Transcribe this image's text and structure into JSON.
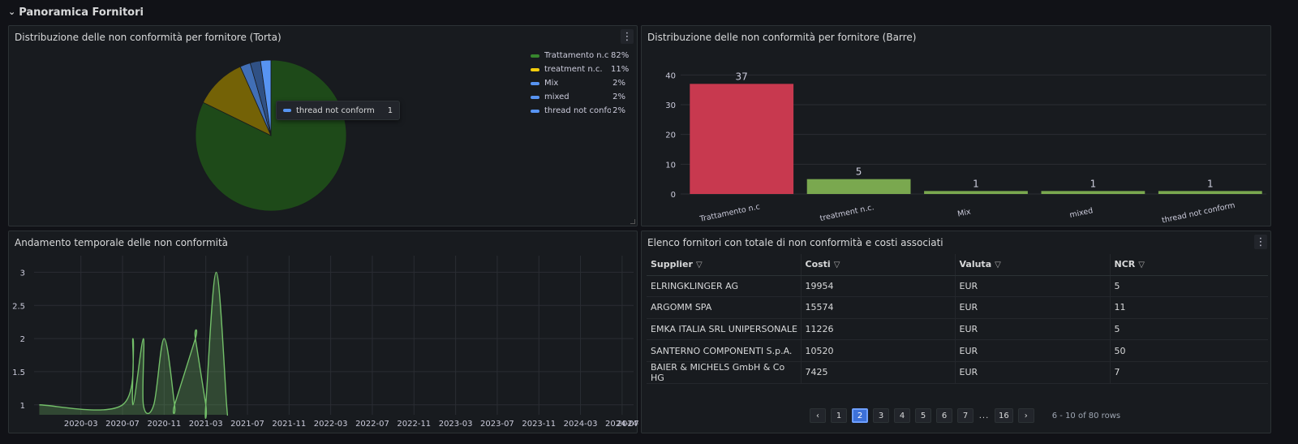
{
  "row": {
    "title": "Panoramica Fornitori"
  },
  "colors": {
    "green": "#37872d",
    "orange": "#f2cc0c",
    "blue": "#5794f2",
    "red": "#e02f44",
    "lightgreen": "#73bf69",
    "bg": "#181b1f"
  },
  "pie_panel": {
    "title": "Distribuzione delle non conformità per fornitore (Torta)",
    "tooltip": {
      "name": "thread not conform",
      "value": "1"
    },
    "legend": [
      {
        "name": "Trattamento n.c",
        "pct": "82%",
        "color": "#37872d"
      },
      {
        "name": "treatment n.c.",
        "pct": "11%",
        "color": "#f2cc0c"
      },
      {
        "name": "Mix",
        "pct": "2%",
        "color": "#5794f2"
      },
      {
        "name": "mixed",
        "pct": "2%",
        "color": "#5794f2"
      },
      {
        "name": "thread not conform",
        "pct": "2%",
        "color": "#5794f2"
      }
    ]
  },
  "bar_panel": {
    "title": "Distribuzione delle non conformità per fornitore (Barre)"
  },
  "time_panel": {
    "title": "Andamento temporale delle non conformità"
  },
  "table_panel": {
    "title": "Elenco fornitori con totale di non conformità e costi associati",
    "columns": [
      "Supplier",
      "Costi",
      "Valuta",
      "NCR"
    ],
    "rows": [
      [
        "ELRINGKLINGER AG",
        "19954",
        "EUR",
        "5"
      ],
      [
        "ARGOMM SPA",
        "15574",
        "EUR",
        "11"
      ],
      [
        "EMKA ITALIA SRL UNIPERSONALE",
        "11226",
        "EUR",
        "5"
      ],
      [
        "SANTERNO COMPONENTI S.p.A.",
        "10520",
        "EUR",
        "50"
      ],
      [
        "BAIER & MICHELS GmbH & Co HG",
        "7425",
        "EUR",
        "7"
      ]
    ],
    "pagination": {
      "prev": "‹",
      "next": "›",
      "pages": [
        "1",
        "2",
        "3",
        "4",
        "5",
        "6",
        "7",
        "...",
        "16"
      ],
      "active": "2",
      "info": "6 - 10 of 80 rows"
    }
  },
  "chart_data": [
    {
      "type": "pie",
      "title": "Distribuzione delle non conformità per fornitore (Torta)",
      "categories": [
        "Trattamento n.c",
        "treatment n.c.",
        "Mix",
        "mixed",
        "thread not conform"
      ],
      "values": [
        37,
        5,
        1,
        1,
        1
      ],
      "colors": [
        "#37872d",
        "#f2cc0c",
        "#5794f2",
        "#5794f2",
        "#5794f2"
      ],
      "legend": "right"
    },
    {
      "type": "bar",
      "title": "Distribuzione delle non conformità per fornitore (Barre)",
      "categories": [
        "Trattamento n.c",
        "treatment  n.c.",
        "Mix",
        "mixed",
        "thread not conform"
      ],
      "values": [
        37,
        5,
        1,
        1,
        1
      ],
      "colors": [
        "#e02f44",
        "#73bf69",
        "#73bf69",
        "#73bf69",
        "#73bf69"
      ],
      "ylim": [
        0,
        45
      ],
      "yticks": [
        "0",
        "10",
        "20",
        "30",
        "40"
      ],
      "grid": true
    },
    {
      "type": "line",
      "title": "Andamento temporale delle non conformità",
      "x": [
        "2019-11",
        "2020-07",
        "2020-08",
        "2020-08",
        "2020-09",
        "2020-09",
        "2020-10",
        "2020-11",
        "2020-12",
        "2020-12",
        "2021-02",
        "2021-02",
        "2021-03",
        "2021-03",
        "2021-04",
        "2021-05",
        "2021-05"
      ],
      "y": [
        1,
        1,
        2,
        1,
        2,
        1,
        1,
        2,
        1,
        1,
        2,
        2,
        1,
        1,
        3,
        1,
        1
      ],
      "xticks": [
        "2020-03",
        "2020-07",
        "2020-11",
        "2021-03",
        "2021-07",
        "2021-11",
        "2022-03",
        "2022-07",
        "2022-11",
        "2023-03",
        "2023-07",
        "2023-11",
        "2024-03",
        "2024-07",
        "2024-"
      ],
      "yticks": [
        "1",
        "1.5",
        "2",
        "2.5",
        "3"
      ],
      "ylim": [
        0.85,
        3.25
      ],
      "color": "#73bf69",
      "grid": true
    }
  ]
}
